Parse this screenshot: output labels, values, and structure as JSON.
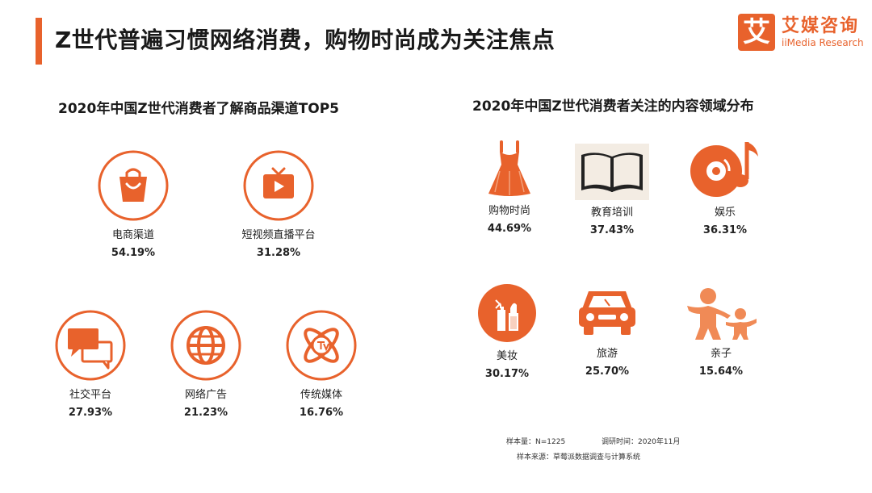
{
  "header": {
    "title": "Z世代普遍习惯网络消费，购物时尚成为关注焦点"
  },
  "logo": {
    "cn": "艾媒咨询",
    "en": "iiMedia Research",
    "mark": "艾"
  },
  "colors": {
    "accent": "#e8622c",
    "circle_fill": "#ffffff",
    "text": "#222222"
  },
  "footer": {
    "sample": "样本量：N=1225",
    "period": "调研时间：2020年11月",
    "source": "样本来源：草莓派数据调查与计算系统"
  },
  "chart_data": [
    {
      "type": "table",
      "title": "2020年中国Z世代消费者了解商品渠道TOP5",
      "categories": [
        "电商渠道",
        "短视频直播平台",
        "社交平台",
        "网络广告",
        "传统媒体"
      ],
      "values": [
        54.19,
        31.28,
        27.93,
        21.23,
        16.76
      ],
      "value_labels": [
        "54.19%",
        "31.28%",
        "27.93%",
        "21.23%",
        "16.76%"
      ],
      "icons": [
        "shopping-bag-icon",
        "tv-play-icon",
        "chat-bubbles-icon",
        "globe-icon",
        "tv-signal-icon"
      ],
      "unit": "%"
    },
    {
      "type": "table",
      "title": "2020年中国Z世代消费者关注的内容领域分布",
      "categories": [
        "购物时尚",
        "教育培训",
        "娱乐",
        "美妆",
        "旅游",
        "亲子"
      ],
      "values": [
        44.69,
        37.43,
        36.31,
        30.17,
        25.7,
        15.64
      ],
      "value_labels": [
        "44.69%",
        "37.43%",
        "36.31%",
        "30.17%",
        "25.70%",
        "15.64%"
      ],
      "icons": [
        "dress-icon",
        "open-book-icon",
        "music-disc-icon",
        "cosmetics-icon",
        "car-icon",
        "parent-child-icon"
      ],
      "unit": "%"
    }
  ]
}
